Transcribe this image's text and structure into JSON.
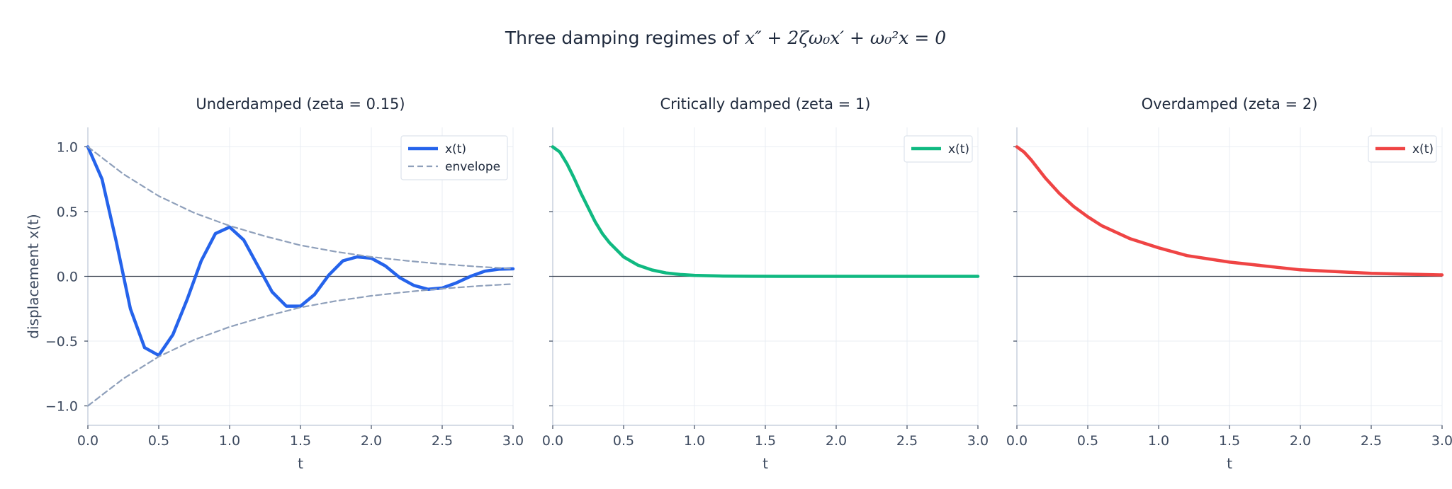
{
  "figure": {
    "title_prefix": "Three damping regimes of ",
    "title_equation": "x″ + 2ζω₀x′ + ω₀²x = 0"
  },
  "chart_data": [
    {
      "type": "line",
      "title": "Underdamped  (zeta = 0.15)",
      "xlabel": "t",
      "ylabel": "displacement  x(t)",
      "xlim": [
        0,
        3
      ],
      "ylim": [
        -1.15,
        1.15
      ],
      "xticks": [
        "0.0",
        "0.5",
        "1.0",
        "1.5",
        "2.0",
        "2.5",
        "3.0"
      ],
      "yticks": [
        "1.0",
        "0.5",
        "0.0",
        "−0.5",
        "−1.0"
      ],
      "grid": true,
      "legend": "top-right",
      "series": [
        {
          "name": "x(t)",
          "color": "#2563eb",
          "x": [
            0.0,
            0.1,
            0.2,
            0.3,
            0.4,
            0.5,
            0.6,
            0.7,
            0.8,
            0.9,
            1.0,
            1.1,
            1.2,
            1.3,
            1.4,
            1.5,
            1.6,
            1.7,
            1.8,
            1.9,
            2.0,
            2.1,
            2.2,
            2.3,
            2.4,
            2.5,
            2.6,
            2.7,
            2.8,
            2.9,
            3.0
          ],
          "y": [
            1.0,
            0.75,
            0.27,
            -0.25,
            -0.55,
            -0.61,
            -0.45,
            -0.18,
            0.12,
            0.33,
            0.38,
            0.28,
            0.08,
            -0.12,
            -0.23,
            -0.23,
            -0.14,
            0.01,
            0.12,
            0.15,
            0.14,
            0.08,
            -0.01,
            -0.07,
            -0.1,
            -0.09,
            -0.05,
            0.0,
            0.04,
            0.055,
            0.058
          ]
        },
        {
          "name": "envelope",
          "color": "#8fa0bb",
          "dashed": true,
          "x": [
            0.0,
            0.25,
            0.5,
            0.75,
            1.0,
            1.25,
            1.5,
            1.75,
            2.0,
            2.25,
            2.5,
            2.75,
            3.0
          ],
          "y": [
            1.0,
            0.79,
            0.62,
            0.49,
            0.39,
            0.31,
            0.24,
            0.19,
            0.15,
            0.12,
            0.095,
            0.075,
            0.059
          ]
        },
        {
          "color": "#8fa0bb",
          "dashed": true,
          "x": [
            0.0,
            0.25,
            0.5,
            0.75,
            1.0,
            1.25,
            1.5,
            1.75,
            2.0,
            2.25,
            2.5,
            2.75,
            3.0
          ],
          "y": [
            -1.0,
            -0.79,
            -0.62,
            -0.49,
            -0.39,
            -0.31,
            -0.24,
            -0.19,
            -0.15,
            -0.12,
            -0.095,
            -0.075,
            -0.059
          ]
        }
      ]
    },
    {
      "type": "line",
      "title": "Critically damped  (zeta = 1)",
      "xlabel": "t",
      "xlim": [
        0,
        3
      ],
      "ylim": [
        -1.15,
        1.15
      ],
      "xticks": [
        "0.0",
        "0.5",
        "1.0",
        "1.5",
        "2.0",
        "2.5",
        "3.0"
      ],
      "grid": true,
      "legend": "top-right",
      "series": [
        {
          "name": "x(t)",
          "color": "#10b981",
          "x": [
            0.0,
            0.05,
            0.1,
            0.15,
            0.2,
            0.25,
            0.3,
            0.35,
            0.4,
            0.5,
            0.6,
            0.7,
            0.8,
            0.9,
            1.0,
            1.2,
            1.4,
            1.6,
            1.8,
            2.0,
            2.5,
            3.0
          ],
          "y": [
            1.0,
            0.96,
            0.87,
            0.76,
            0.64,
            0.53,
            0.42,
            0.33,
            0.26,
            0.15,
            0.087,
            0.049,
            0.026,
            0.014,
            0.0075,
            0.002,
            0.0005,
            0.0001,
            0.0,
            0.0,
            0.0,
            0.0
          ]
        }
      ]
    },
    {
      "type": "line",
      "title": "Overdamped  (zeta = 2)",
      "xlabel": "t",
      "xlim": [
        0,
        3
      ],
      "ylim": [
        -1.15,
        1.15
      ],
      "xticks": [
        "0.0",
        "0.5",
        "1.0",
        "1.5",
        "2.0",
        "2.5",
        "3.0"
      ],
      "grid": true,
      "legend": "top-right",
      "series": [
        {
          "name": "x(t)",
          "color": "#ef4444",
          "x": [
            0.0,
            0.05,
            0.1,
            0.2,
            0.3,
            0.4,
            0.5,
            0.6,
            0.8,
            1.0,
            1.2,
            1.5,
            2.0,
            2.5,
            3.0
          ],
          "y": [
            1.0,
            0.96,
            0.9,
            0.76,
            0.64,
            0.54,
            0.46,
            0.39,
            0.29,
            0.22,
            0.16,
            0.11,
            0.05,
            0.023,
            0.011
          ]
        }
      ]
    }
  ]
}
